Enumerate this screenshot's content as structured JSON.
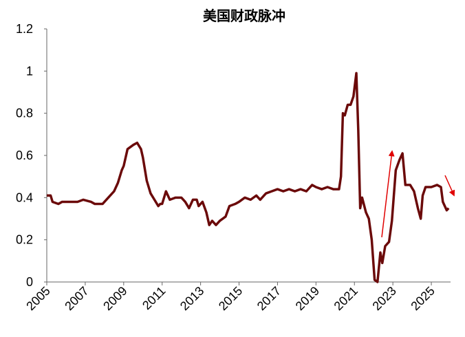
{
  "chart_data": {
    "type": "line",
    "title": "美国财政脉冲",
    "x": [
      2005.0,
      2005.2,
      2005.3,
      2005.6,
      2005.8,
      2006.2,
      2006.6,
      2006.9,
      2007.3,
      2007.5,
      2007.9,
      2008.2,
      2008.5,
      2008.7,
      2008.9,
      2009.0,
      2009.2,
      2009.5,
      2009.7,
      2009.9,
      2010.0,
      2010.2,
      2010.4,
      2010.6,
      2010.8,
      2010.9,
      2011.0,
      2011.2,
      2011.4,
      2011.7,
      2012.0,
      2012.2,
      2012.4,
      2012.6,
      2012.8,
      2012.9,
      2013.1,
      2013.3,
      2013.45,
      2013.6,
      2013.8,
      2014.0,
      2014.3,
      2014.5,
      2014.8,
      2015.0,
      2015.3,
      2015.6,
      2015.9,
      2016.1,
      2016.4,
      2016.7,
      2017.0,
      2017.3,
      2017.6,
      2017.9,
      2018.2,
      2018.5,
      2018.8,
      2019.0,
      2019.3,
      2019.6,
      2019.9,
      2020.2,
      2020.3,
      2020.4,
      2020.5,
      2020.65,
      2020.8,
      2020.95,
      2021.1,
      2021.2,
      2021.3,
      2021.4,
      2021.6,
      2021.75,
      2021.9,
      2022.05,
      2022.2,
      2022.35,
      2022.45,
      2022.6,
      2022.8,
      2022.95,
      2023.15,
      2023.35,
      2023.5,
      2023.65,
      2023.9,
      2024.1,
      2024.3,
      2024.45,
      2024.55,
      2024.7,
      2025.0,
      2025.3,
      2025.5,
      2025.6,
      2025.8,
      2025.9
    ],
    "values": [
      0.41,
      0.41,
      0.38,
      0.37,
      0.38,
      0.38,
      0.38,
      0.39,
      0.38,
      0.37,
      0.37,
      0.4,
      0.43,
      0.47,
      0.53,
      0.55,
      0.63,
      0.65,
      0.66,
      0.63,
      0.59,
      0.48,
      0.42,
      0.39,
      0.36,
      0.37,
      0.37,
      0.43,
      0.39,
      0.4,
      0.4,
      0.38,
      0.35,
      0.39,
      0.39,
      0.36,
      0.38,
      0.33,
      0.27,
      0.29,
      0.27,
      0.29,
      0.31,
      0.36,
      0.37,
      0.38,
      0.4,
      0.39,
      0.41,
      0.39,
      0.42,
      0.43,
      0.44,
      0.43,
      0.44,
      0.43,
      0.44,
      0.43,
      0.46,
      0.45,
      0.44,
      0.45,
      0.44,
      0.44,
      0.5,
      0.8,
      0.79,
      0.84,
      0.84,
      0.88,
      0.99,
      0.72,
      0.35,
      0.4,
      0.33,
      0.3,
      0.2,
      0.01,
      0.0,
      0.14,
      0.09,
      0.17,
      0.19,
      0.29,
      0.53,
      0.58,
      0.61,
      0.46,
      0.46,
      0.43,
      0.35,
      0.3,
      0.41,
      0.45,
      0.45,
      0.46,
      0.45,
      0.38,
      0.34,
      0.35
    ],
    "color": "#6b0a0a",
    "xlim": [
      2005,
      2026
    ],
    "xticks": [
      2005,
      2007,
      2009,
      2011,
      2013,
      2015,
      2017,
      2019,
      2021,
      2023,
      2025
    ],
    "ylim": [
      0,
      1.2
    ],
    "yticks": [
      0,
      0.2,
      0.4,
      0.6,
      0.8,
      1,
      1.2
    ]
  }
}
